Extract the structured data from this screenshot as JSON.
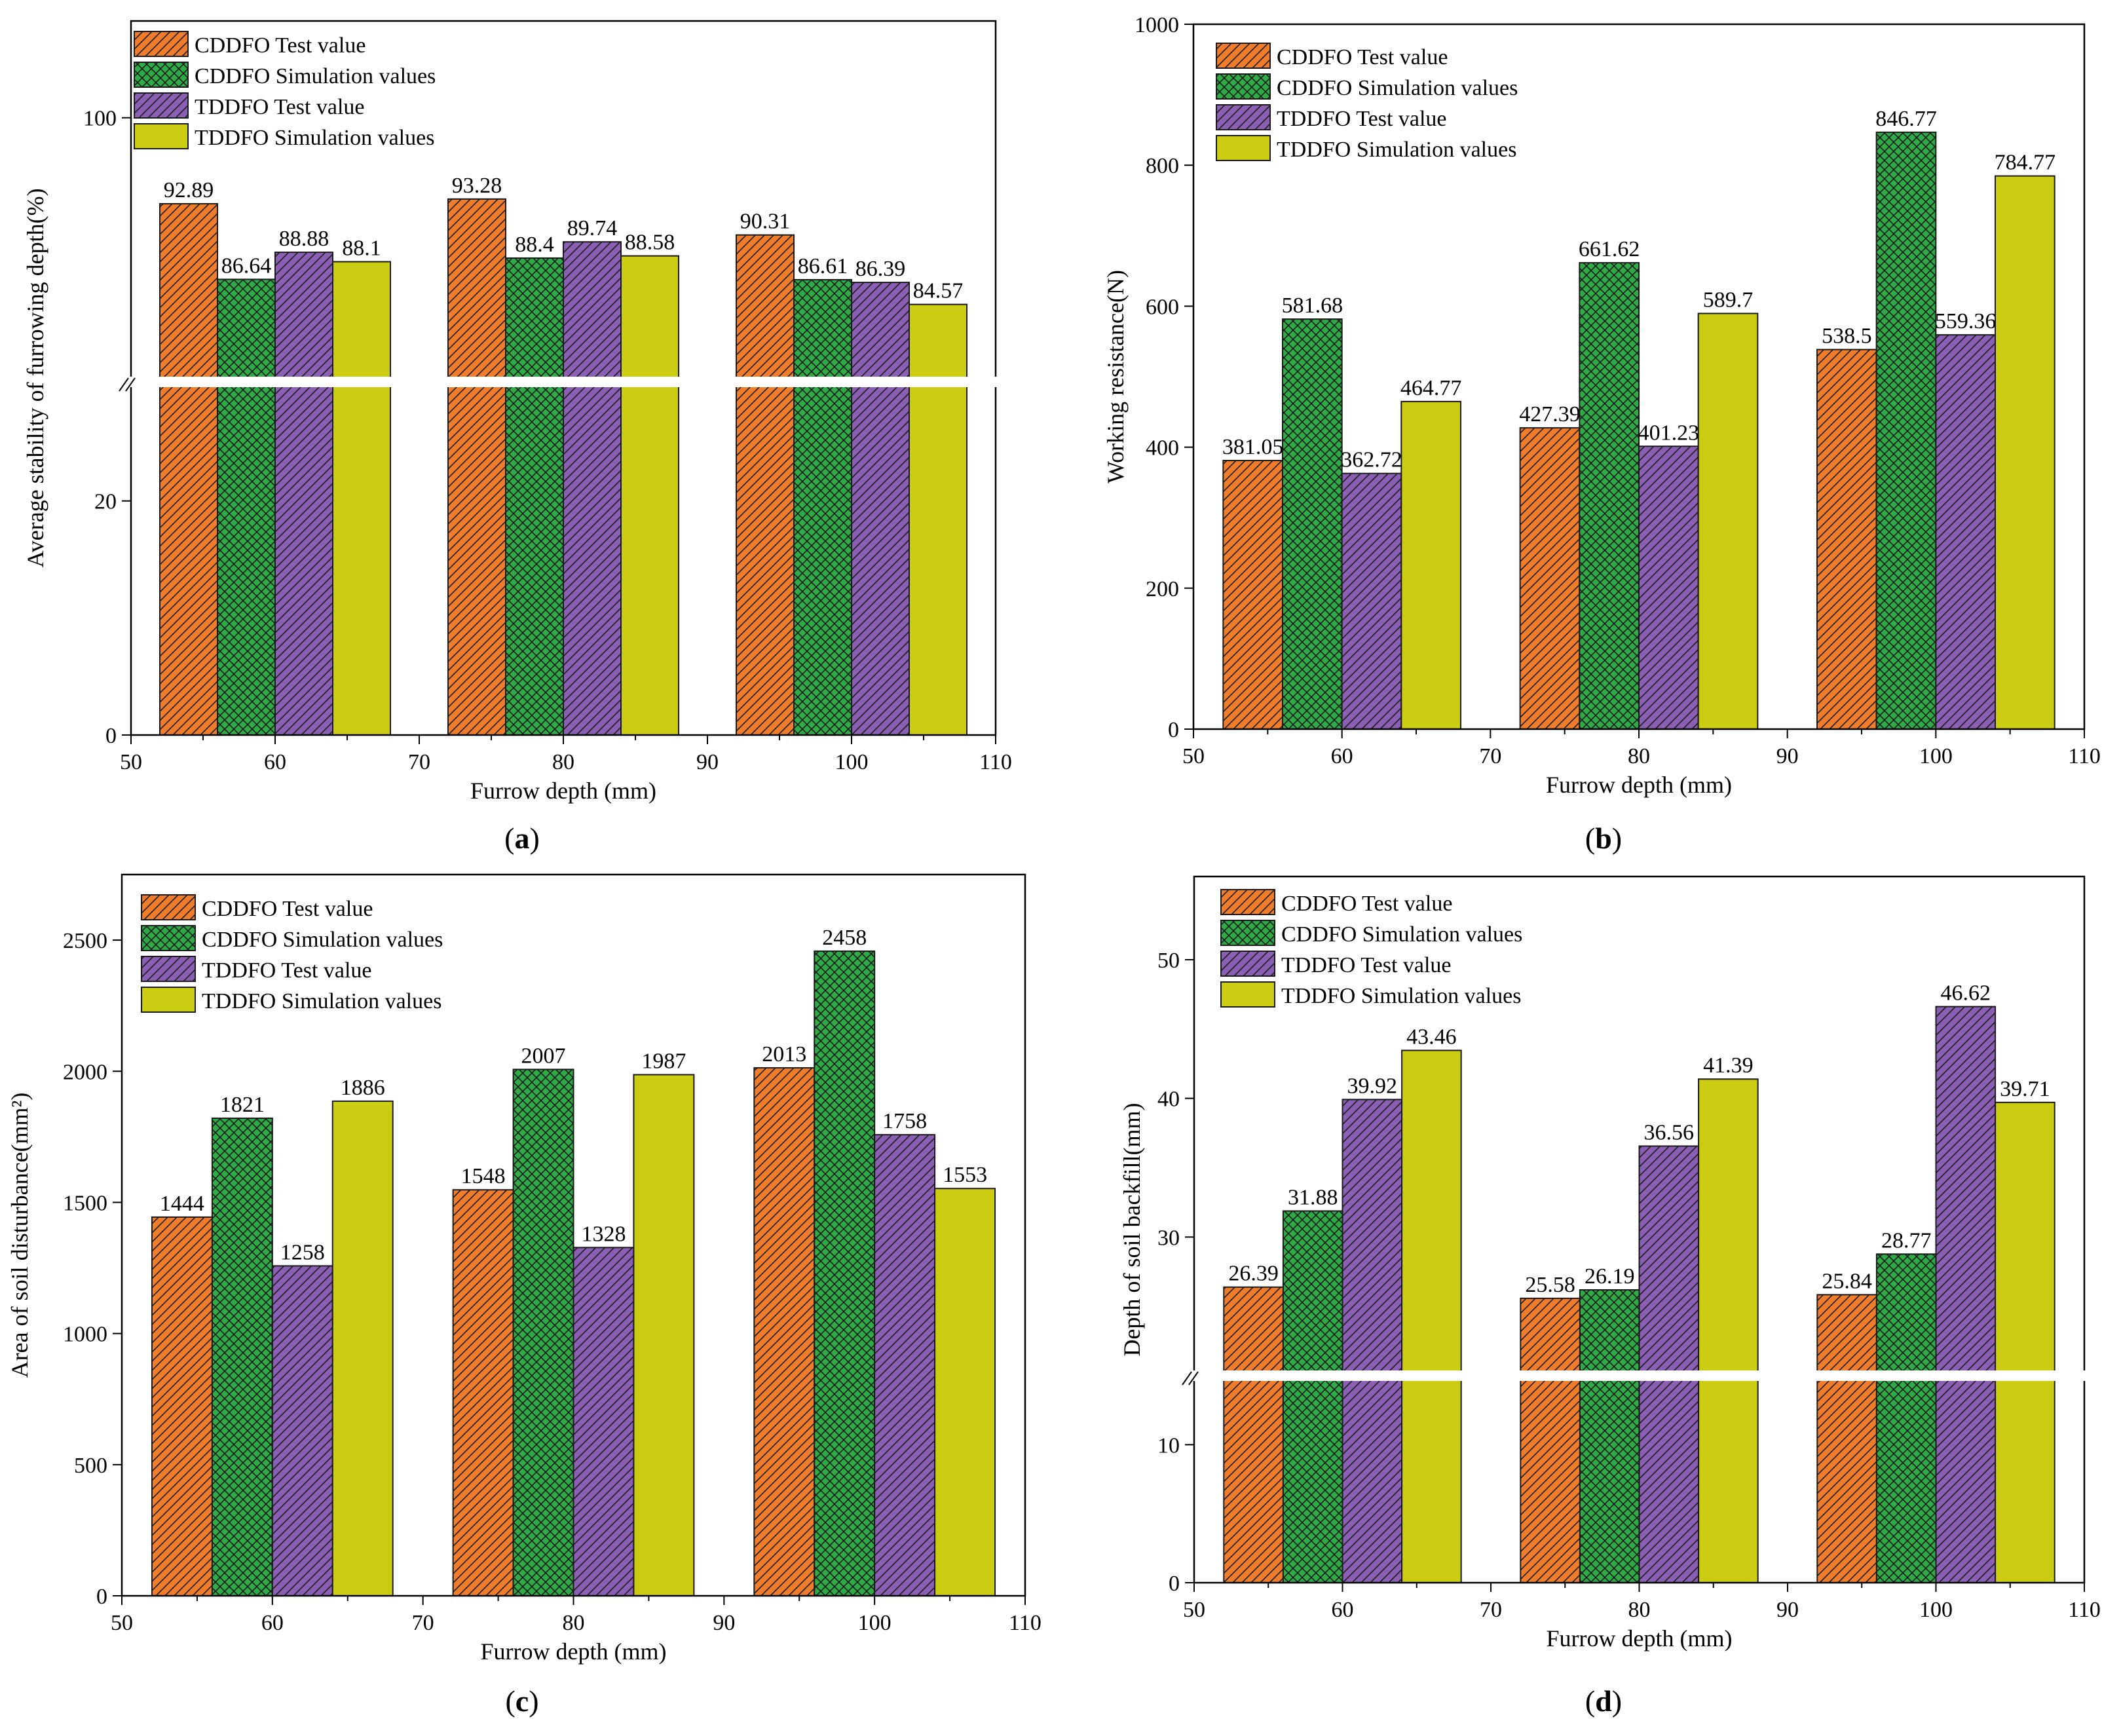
{
  "colors": {
    "cddfo_test": "#f07d2c",
    "cddfo_sim": "#2eab47",
    "tddfo_test": "#8a5fb4",
    "tddfo_sim": "#cccc12",
    "axis": "#000000"
  },
  "legend": [
    "CDDFO Test value",
    "CDDFO Simulation values",
    "TDDFO Test value",
    "TDDFO Simulation values"
  ],
  "chart_data": [
    {
      "id": "a",
      "type": "bar",
      "panel_label": "a",
      "xlabel": "Furrow depth (mm)",
      "ylabel": "Average stability of furrowing depth(%)",
      "xlim": [
        50,
        110
      ],
      "xticks": [
        "50",
        "60",
        "70",
        "80",
        "90",
        "100",
        "110"
      ],
      "categories": [
        60,
        80,
        100
      ],
      "series": [
        {
          "name": "CDDFO Test value",
          "values": [
            92.89,
            93.28,
            90.31
          ],
          "labels": [
            "92.89",
            "93.28",
            "90.31"
          ]
        },
        {
          "name": "CDDFO Simulation values",
          "values": [
            86.64,
            88.4,
            86.61
          ],
          "labels": [
            "86.64",
            "88.4",
            "86.61"
          ]
        },
        {
          "name": "TDDFO Test value",
          "values": [
            88.88,
            89.74,
            86.39
          ],
          "labels": [
            "88.88",
            "89.74",
            "86.39"
          ]
        },
        {
          "name": "TDDFO Simulation values",
          "values": [
            88.1,
            88.58,
            84.57
          ],
          "labels": [
            "88.1",
            "88.58",
            "84.57"
          ]
        }
      ],
      "axis_break": {
        "lower_range": [
          0,
          30
        ],
        "upper_range": [
          78,
          108
        ]
      },
      "yticks": [
        "0",
        "20",
        "100"
      ]
    },
    {
      "id": "b",
      "type": "bar",
      "panel_label": "b",
      "xlabel": "Furrow depth (mm)",
      "ylabel": "Working resistance(N)",
      "xlim": [
        50,
        110
      ],
      "ylim": [
        0,
        1000
      ],
      "xticks": [
        "50",
        "60",
        "70",
        "80",
        "90",
        "100",
        "110"
      ],
      "yticks": [
        "0",
        "200",
        "400",
        "600",
        "800",
        "1000"
      ],
      "categories": [
        60,
        80,
        100
      ],
      "series": [
        {
          "name": "CDDFO Test value",
          "values": [
            381.05,
            427.39,
            538.5
          ],
          "labels": [
            "381.05",
            "427.39",
            "538.5"
          ]
        },
        {
          "name": "CDDFO Simulation values",
          "values": [
            581.68,
            661.62,
            846.77
          ],
          "labels": [
            "581.68",
            "661.62",
            "846.77"
          ]
        },
        {
          "name": "TDDFO Test value",
          "values": [
            362.72,
            401.23,
            559.36
          ],
          "labels": [
            "362.72",
            "401.23",
            "559.36"
          ]
        },
        {
          "name": "TDDFO Simulation values",
          "values": [
            464.77,
            589.7,
            784.77
          ],
          "labels": [
            "464.77",
            "589.7",
            "784.77"
          ]
        }
      ]
    },
    {
      "id": "c",
      "type": "bar",
      "panel_label": "c",
      "xlabel": "Furrow depth (mm)",
      "ylabel": "Area of soil disturbance(mm²)",
      "xlim": [
        50,
        110
      ],
      "ylim": [
        0,
        2750
      ],
      "xticks": [
        "50",
        "60",
        "70",
        "80",
        "90",
        "100",
        "110"
      ],
      "yticks": [
        "0",
        "500",
        "1000",
        "1500",
        "2000",
        "2500"
      ],
      "categories": [
        60,
        80,
        100
      ],
      "series": [
        {
          "name": "CDDFO Test value",
          "values": [
            1444,
            1548,
            2013
          ],
          "labels": [
            "1444",
            "1548",
            "2013"
          ]
        },
        {
          "name": "CDDFO Simulation values",
          "values": [
            1821,
            2007,
            2458
          ],
          "labels": [
            "1821",
            "2007",
            "2458"
          ]
        },
        {
          "name": "TDDFO Test value",
          "values": [
            1258,
            1328,
            1758
          ],
          "labels": [
            "1258",
            "1328",
            "1758"
          ]
        },
        {
          "name": "TDDFO Simulation values",
          "values": [
            1886,
            1987,
            1553
          ],
          "labels": [
            "1886",
            "1987",
            "1553"
          ]
        }
      ]
    },
    {
      "id": "d",
      "type": "bar",
      "panel_label": "d",
      "xlabel": "Furrow depth (mm)",
      "ylabel": "Depth of soil backfill(mm)",
      "xlim": [
        50,
        110
      ],
      "xticks": [
        "50",
        "60",
        "70",
        "80",
        "90",
        "100",
        "110"
      ],
      "categories": [
        60,
        80,
        100
      ],
      "series": [
        {
          "name": "CDDFO Test value",
          "values": [
            26.39,
            25.58,
            25.84
          ],
          "labels": [
            "26.39",
            "25.58",
            "25.84"
          ]
        },
        {
          "name": "CDDFO Simulation values",
          "values": [
            31.88,
            26.19,
            28.77
          ],
          "labels": [
            "31.88",
            "26.19",
            "28.77"
          ]
        },
        {
          "name": "TDDFO Test value",
          "values": [
            39.92,
            36.56,
            46.62
          ],
          "labels": [
            "39.92",
            "36.56",
            "46.62"
          ]
        },
        {
          "name": "TDDFO Simulation values",
          "values": [
            43.46,
            41.39,
            39.71
          ],
          "labels": [
            "43.46",
            "41.39",
            "39.71"
          ]
        }
      ],
      "axis_break": {
        "lower_range": [
          0,
          15
        ],
        "upper_range": [
          20,
          56
        ]
      },
      "yticks": [
        "0",
        "10",
        "30",
        "40",
        "50"
      ]
    }
  ]
}
